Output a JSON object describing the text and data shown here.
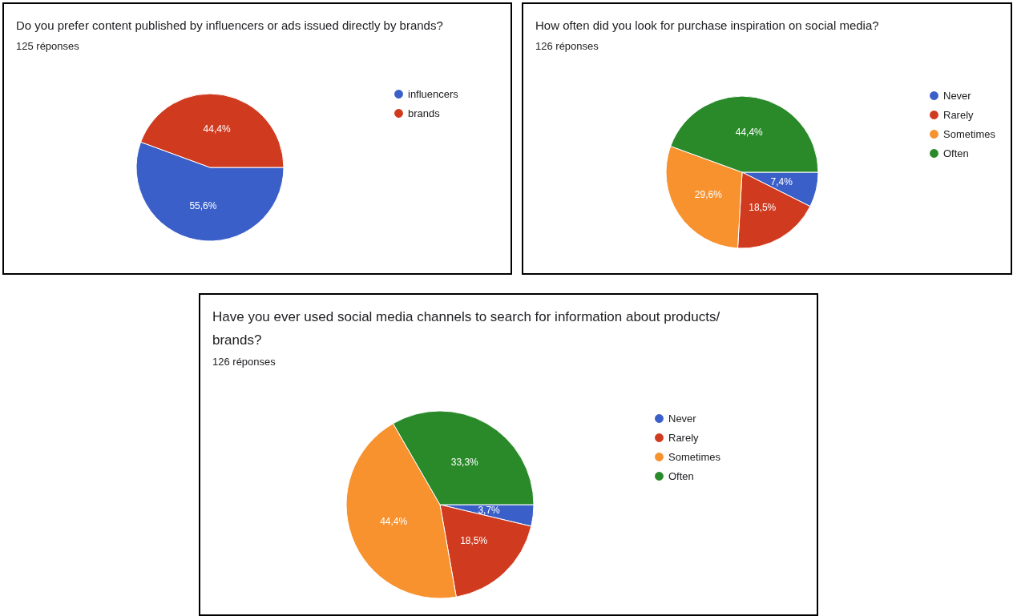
{
  "chart_data": [
    {
      "type": "pie",
      "title": "Do you prefer content published by influencers or ads issued directly by brands?",
      "subtitle": "125 réponses",
      "categories": [
        "influencers",
        "brands"
      ],
      "values": [
        55.6,
        44.4
      ],
      "value_labels": [
        "55,6%",
        "44,4%"
      ],
      "colors": [
        "#3a5fc8",
        "#d03a1f"
      ],
      "legend": "right"
    },
    {
      "type": "pie",
      "title": "How often did you look for purchase inspiration on social media?",
      "subtitle": "126 réponses",
      "categories": [
        "Never",
        "Rarely",
        "Sometimes",
        "Often"
      ],
      "values": [
        7.4,
        18.5,
        29.6,
        44.4
      ],
      "value_labels": [
        "7,4%",
        "18,5%",
        "29,6%",
        "44,4%"
      ],
      "colors": [
        "#3a5fc8",
        "#d03a1f",
        "#f7922f",
        "#2a8a2a"
      ],
      "legend": "right"
    },
    {
      "type": "pie",
      "title": "Have you ever used social media channels to search for information about products/\nbrands?",
      "subtitle": "126 réponses",
      "categories": [
        "Never",
        "Rarely",
        "Sometimes",
        "Often"
      ],
      "values": [
        3.7,
        18.5,
        44.4,
        33.3
      ],
      "value_labels": [
        "3,7%",
        "18,5%",
        "44,4%",
        "33,3%"
      ],
      "colors": [
        "#3a5fc8",
        "#d03a1f",
        "#f7922f",
        "#2a8a2a"
      ],
      "legend": "right"
    }
  ]
}
